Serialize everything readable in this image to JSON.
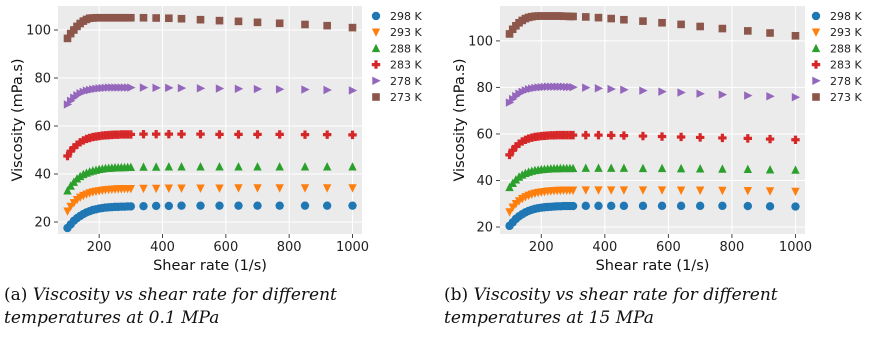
{
  "chart_data": [
    {
      "type": "scatter",
      "xlabel": "Shear rate (1/s)",
      "ylabel": "Viscosity (mPa.s)",
      "xlim": [
        70,
        1030
      ],
      "ylim": [
        15,
        110
      ],
      "xticks": [
        200,
        400,
        600,
        800,
        1000
      ],
      "yticks": [
        20,
        40,
        60,
        80,
        100
      ],
      "grid": true,
      "legend": "outside-right",
      "x": [
        100,
        110,
        120,
        130,
        140,
        150,
        160,
        170,
        180,
        190,
        200,
        210,
        220,
        230,
        240,
        250,
        260,
        270,
        280,
        290,
        300,
        340,
        380,
        420,
        460,
        520,
        580,
        640,
        700,
        770,
        850,
        920,
        1000
      ],
      "series": [
        {
          "name": "298 K",
          "color": "#1f77b4",
          "marker": "circle",
          "values": [
            17.5,
            19.0,
            20.5,
            21.6,
            22.5,
            23.3,
            24.0,
            24.5,
            25.0,
            25.3,
            25.6,
            25.8,
            26.0,
            26.1,
            26.2,
            26.3,
            26.3,
            26.4,
            26.4,
            26.5,
            26.5,
            26.6,
            26.7,
            26.7,
            26.8,
            26.8,
            26.8,
            26.8,
            26.8,
            26.8,
            26.8,
            26.8,
            26.8
          ]
        },
        {
          "name": "293 K",
          "color": "#ff7f0e",
          "marker": "triangle-down",
          "values": [
            24.5,
            26.5,
            28.0,
            29.3,
            30.3,
            31.0,
            31.6,
            32.1,
            32.5,
            32.8,
            33.0,
            33.2,
            33.4,
            33.5,
            33.6,
            33.7,
            33.8,
            33.8,
            33.9,
            33.9,
            33.9,
            34.0,
            34.0,
            34.1,
            34.1,
            34.1,
            34.1,
            34.2,
            34.2,
            34.2,
            34.2,
            34.2,
            34.2
          ]
        },
        {
          "name": "288 K",
          "color": "#2ca02c",
          "marker": "triangle-up",
          "values": [
            33.0,
            35.0,
            36.6,
            38.0,
            39.0,
            39.8,
            40.4,
            40.9,
            41.3,
            41.6,
            41.9,
            42.1,
            42.3,
            42.4,
            42.5,
            42.6,
            42.6,
            42.7,
            42.7,
            42.8,
            42.8,
            42.9,
            42.9,
            43.0,
            43.0,
            43.0,
            43.0,
            43.0,
            43.0,
            43.0,
            43.0,
            43.0,
            43.0
          ]
        },
        {
          "name": "283 K",
          "color": "#d62728",
          "marker": "plus",
          "values": [
            47.5,
            49.5,
            51.0,
            52.2,
            53.2,
            54.0,
            54.6,
            55.0,
            55.4,
            55.6,
            55.8,
            56.0,
            56.1,
            56.2,
            56.3,
            56.4,
            56.4,
            56.5,
            56.5,
            56.5,
            56.5,
            56.6,
            56.6,
            56.6,
            56.6,
            56.6,
            56.5,
            56.5,
            56.5,
            56.5,
            56.4,
            56.4,
            56.3
          ]
        },
        {
          "name": "278 K",
          "color": "#9467bd",
          "marker": "triangle-right",
          "values": [
            69.0,
            70.5,
            71.8,
            72.8,
            73.6,
            74.2,
            74.7,
            75.0,
            75.3,
            75.5,
            75.7,
            75.8,
            75.9,
            76.0,
            76.0,
            76.0,
            76.0,
            76.0,
            76.0,
            76.0,
            76.0,
            76.0,
            75.9,
            75.9,
            75.8,
            75.7,
            75.6,
            75.5,
            75.4,
            75.3,
            75.2,
            75.0,
            74.8
          ]
        },
        {
          "name": "273 K",
          "color": "#8c564b",
          "marker": "square",
          "values": [
            96.5,
            98.5,
            100.0,
            101.5,
            102.7,
            103.7,
            104.4,
            104.9,
            105.0,
            105.1,
            105.1,
            105.1,
            105.1,
            105.1,
            105.1,
            105.1,
            105.1,
            105.1,
            105.1,
            105.1,
            105.1,
            105.1,
            105.0,
            104.9,
            104.7,
            104.3,
            103.9,
            103.6,
            103.2,
            102.8,
            102.3,
            101.8,
            101.0
          ]
        }
      ],
      "caption_tag": "(a)",
      "caption": "Viscosity vs shear rate for different temperatures at 0.1 MPa"
    },
    {
      "type": "scatter",
      "xlabel": "Shear rate (1/s)",
      "ylabel": "Viscosity (mPa.s)",
      "xlim": [
        70,
        1030
      ],
      "ylim": [
        17,
        115
      ],
      "xticks": [
        200,
        400,
        600,
        800,
        1000
      ],
      "yticks": [
        20,
        40,
        60,
        80,
        100
      ],
      "grid": true,
      "legend": "outside-right",
      "x": [
        100,
        110,
        120,
        130,
        140,
        150,
        160,
        170,
        180,
        190,
        200,
        210,
        220,
        230,
        240,
        250,
        260,
        270,
        280,
        290,
        300,
        340,
        380,
        420,
        460,
        520,
        580,
        640,
        700,
        770,
        850,
        920,
        1000
      ],
      "series": [
        {
          "name": "298 K",
          "color": "#1f77b4",
          "marker": "circle",
          "values": [
            20.5,
            22.0,
            23.5,
            24.6,
            25.5,
            26.3,
            26.9,
            27.4,
            27.8,
            28.1,
            28.3,
            28.5,
            28.6,
            28.7,
            28.8,
            28.9,
            28.9,
            29.0,
            29.0,
            29.0,
            29.0,
            29.1,
            29.1,
            29.1,
            29.1,
            29.1,
            29.1,
            29.1,
            29.1,
            29.1,
            29.0,
            28.9,
            28.8
          ]
        },
        {
          "name": "293 K",
          "color": "#ff7f0e",
          "marker": "triangle-down",
          "values": [
            26.5,
            28.5,
            30.0,
            31.2,
            32.2,
            33.0,
            33.6,
            34.1,
            34.5,
            34.8,
            35.0,
            35.2,
            35.4,
            35.5,
            35.6,
            35.7,
            35.7,
            35.8,
            35.8,
            35.8,
            35.8,
            35.9,
            35.9,
            35.9,
            35.9,
            35.9,
            35.9,
            35.8,
            35.8,
            35.7,
            35.6,
            35.5,
            35.3
          ]
        },
        {
          "name": "288 K",
          "color": "#2ca02c",
          "marker": "triangle-up",
          "values": [
            37.0,
            38.8,
            40.3,
            41.5,
            42.4,
            43.1,
            43.6,
            44.0,
            44.3,
            44.5,
            44.7,
            44.8,
            44.9,
            45.0,
            45.1,
            45.1,
            45.2,
            45.2,
            45.2,
            45.2,
            45.2,
            45.3,
            45.3,
            45.3,
            45.3,
            45.2,
            45.2,
            45.1,
            45.0,
            44.9,
            44.8,
            44.6,
            44.5
          ]
        },
        {
          "name": "283 K",
          "color": "#d62728",
          "marker": "plus",
          "values": [
            51.0,
            53.0,
            54.6,
            55.8,
            56.8,
            57.5,
            58.0,
            58.4,
            58.7,
            58.9,
            59.1,
            59.2,
            59.3,
            59.4,
            59.4,
            59.5,
            59.5,
            59.5,
            59.5,
            59.5,
            59.5,
            59.5,
            59.5,
            59.4,
            59.3,
            59.1,
            58.9,
            58.7,
            58.5,
            58.3,
            58.1,
            57.8,
            57.5
          ]
        },
        {
          "name": "278 K",
          "color": "#9467bd",
          "marker": "triangle-right",
          "values": [
            73.5,
            75.0,
            76.3,
            77.3,
            78.1,
            78.7,
            79.2,
            79.5,
            79.8,
            80.0,
            80.1,
            80.2,
            80.3,
            80.3,
            80.3,
            80.3,
            80.3,
            80.3,
            80.2,
            80.2,
            80.1,
            79.9,
            79.6,
            79.3,
            79.0,
            78.6,
            78.2,
            77.8,
            77.3,
            76.9,
            76.5,
            76.2,
            75.8
          ]
        },
        {
          "name": "273 K",
          "color": "#8c564b",
          "marker": "square",
          "values": [
            103.0,
            105.0,
            106.5,
            107.8,
            108.8,
            109.6,
            110.1,
            110.4,
            110.6,
            110.7,
            110.7,
            110.7,
            110.7,
            110.7,
            110.7,
            110.7,
            110.7,
            110.6,
            110.6,
            110.5,
            110.5,
            110.3,
            110.0,
            109.6,
            109.1,
            108.5,
            107.8,
            107.1,
            106.2,
            105.3,
            104.3,
            103.4,
            102.2
          ]
        }
      ],
      "caption_tag": "(b)",
      "caption": "Viscosity vs shear rate for different temperatures at 15 MPa"
    }
  ]
}
